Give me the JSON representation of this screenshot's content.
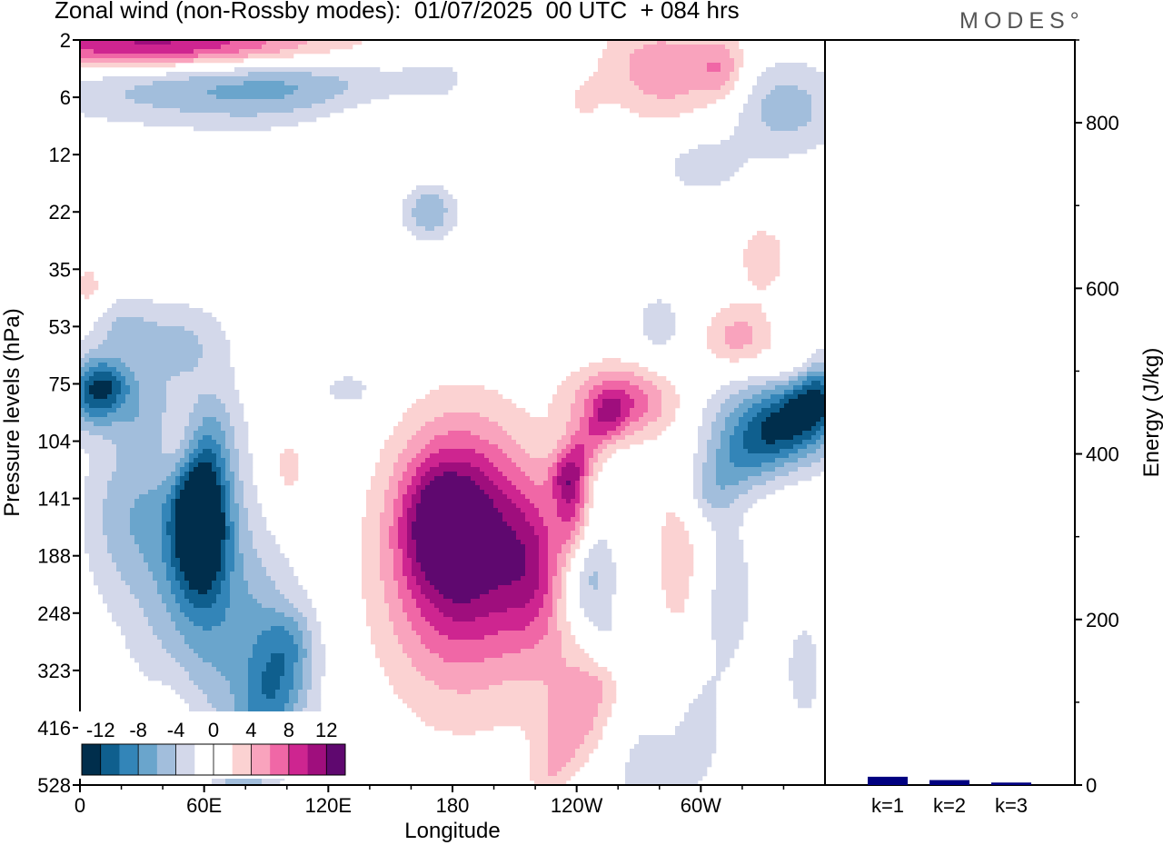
{
  "header": {
    "title": "Zonal wind (non-Rossby modes):  01/07/2025  00 UTC  + 084 hrs",
    "brand": "MODES°"
  },
  "colors": {
    "levels": [
      "#002e4c",
      "#0f5f8e",
      "#3385b8",
      "#6aa5cc",
      "#a2bedc",
      "#d3d8ea",
      "#ffffff",
      "#ffffff",
      "#fbd2d2",
      "#f9a3bd",
      "#f067a6",
      "#ce2590",
      "#9f0e7d",
      "#5f086f"
    ],
    "energy_bar": "#000080"
  },
  "chart_data": [
    {
      "type": "heatmap",
      "xlabel": "Longitude",
      "ylabel": "Pressure levels (hPa)",
      "xticks": [
        "0",
        "60E",
        "120E",
        "180",
        "120W",
        "60W"
      ],
      "xrange": [
        0,
        360
      ],
      "yticks": [
        "2",
        "6",
        "12",
        "22",
        "35",
        "53",
        "75",
        "104",
        "141",
        "188",
        "248",
        "323",
        "416",
        "528"
      ],
      "colorbar": {
        "labels": [
          "-12",
          "-8",
          "-4",
          "0",
          "4",
          "8",
          "12"
        ],
        "levels": [
          -14,
          -12,
          -10,
          -8,
          -6,
          -4,
          -2,
          0,
          2,
          4,
          6,
          8,
          10,
          12,
          14
        ]
      },
      "features": [
        {
          "lon": 58,
          "lev": 8.3,
          "amp": -15,
          "wx": 9,
          "wy": 0.9
        },
        {
          "lon": 52,
          "lev": 8.8,
          "amp": -6,
          "wx": 22,
          "wy": 2.0
        },
        {
          "lon": 80,
          "lev": 10.5,
          "amp": -4,
          "wx": 20,
          "wy": 1.3
        },
        {
          "lon": 98,
          "lev": 11.3,
          "amp": -3.5,
          "wx": 14,
          "wy": 1.0
        },
        {
          "lon": 20,
          "lev": 8.3,
          "amp": -3.5,
          "wx": 15,
          "wy": 1.0
        },
        {
          "lon": 8,
          "lev": 6.2,
          "amp": -5,
          "wx": 10,
          "wy": 0.4
        },
        {
          "lon": 45,
          "lev": 5.3,
          "amp": -3.5,
          "wx": 18,
          "wy": 0.5
        },
        {
          "lon": 185,
          "lev": 8.5,
          "amp": 11,
          "wx": 22,
          "wy": 1.3
        },
        {
          "lon": 172,
          "lev": 8.4,
          "amp": 5,
          "wx": 12,
          "wy": 0.7
        },
        {
          "lon": 185,
          "lev": 9.8,
          "amp": 5,
          "wx": 30,
          "wy": 1.6
        },
        {
          "lon": 220,
          "lev": 9.2,
          "amp": 6,
          "wx": 12,
          "wy": 1.0
        },
        {
          "lon": 238,
          "lev": 8.1,
          "amp": 7,
          "wx": 6,
          "wy": 0.7
        },
        {
          "lon": 262,
          "lev": 6.3,
          "amp": 8,
          "wx": 18,
          "wy": 0.45
        },
        {
          "lon": 242,
          "lev": 11.7,
          "amp": 4,
          "wx": 14,
          "wy": 1.0
        },
        {
          "lon": 50,
          "lev": 7.0,
          "amp": 6,
          "wx": 9,
          "wy": 0.6
        },
        {
          "lon": 45,
          "lev": 12.5,
          "amp": 3,
          "wx": 9,
          "wy": 0.9
        },
        {
          "lon": 245,
          "lev": 9.4,
          "amp": -6,
          "wx": 10,
          "wy": 0.7
        },
        {
          "lon": 335,
          "lev": 6.7,
          "amp": -8,
          "wx": 24,
          "wy": 0.6
        },
        {
          "lon": 355,
          "lev": 6.2,
          "amp": -5,
          "wx": 10,
          "wy": 0.5
        },
        {
          "lon": 5,
          "lev": 6.1,
          "amp": -5,
          "wx": 9,
          "wy": 0.5
        },
        {
          "lon": 318,
          "lev": 5.2,
          "amp": 5,
          "wx": 12,
          "wy": 0.4
        },
        {
          "lon": 313,
          "lev": 9.6,
          "amp": -3.5,
          "wx": 9,
          "wy": 1.0
        },
        {
          "lon": 40,
          "lev": 0.1,
          "amp": 12,
          "wx": 60,
          "wy": 0.3
        },
        {
          "lon": 120,
          "lev": 0.8,
          "amp": -8,
          "wx": 90,
          "wy": 0.5
        },
        {
          "lon": 150,
          "lev": 1.0,
          "amp": 5,
          "wx": 30,
          "wy": 0.6
        },
        {
          "lon": 280,
          "lev": 0.6,
          "amp": 7,
          "wx": 25,
          "wy": 0.6
        },
        {
          "lon": 340,
          "lev": 1.2,
          "amp": -5,
          "wx": 20,
          "wy": 0.6
        },
        {
          "lon": 200,
          "lev": 0.8,
          "amp": 3.5,
          "wx": 15,
          "wy": 0.3
        },
        {
          "lon": 240,
          "lev": 1.0,
          "amp": 3.5,
          "wx": 10,
          "wy": 0.4
        },
        {
          "lon": 310,
          "lev": 0.5,
          "amp": 4,
          "wx": 8,
          "wy": 0.4
        },
        {
          "lon": 170,
          "lev": 3.0,
          "amp": -3,
          "wx": 10,
          "wy": 0.4
        },
        {
          "lon": 280,
          "lev": 5.0,
          "amp": -3,
          "wx": 10,
          "wy": 0.5
        },
        {
          "lon": 330,
          "lev": 3.8,
          "amp": 3,
          "wx": 10,
          "wy": 0.5
        },
        {
          "lon": 300,
          "lev": 2.2,
          "amp": -3,
          "wx": 15,
          "wy": 0.4
        },
        {
          "lon": 270,
          "lev": 12.8,
          "amp": -3,
          "wx": 15,
          "wy": 1.0
        },
        {
          "lon": 300,
          "lev": 12.0,
          "amp": -2.5,
          "wx": 10,
          "wy": 1.0
        },
        {
          "lon": 350,
          "lev": 11.0,
          "amp": -2.5,
          "wx": 10,
          "wy": 1.0
        },
        {
          "lon": 290,
          "lev": 9.0,
          "amp": 3,
          "wx": 10,
          "wy": 1.4
        },
        {
          "lon": 20,
          "lev": 5.0,
          "amp": -3,
          "wx": 10,
          "wy": 0.4
        },
        {
          "lon": 345,
          "lev": 5.7,
          "amp": 3.5,
          "wx": 8,
          "wy": 0.3
        },
        {
          "lon": 15,
          "lev": 6.0,
          "amp": -4,
          "wx": 8,
          "wy": 0.3
        },
        {
          "lon": 130,
          "lev": 6.1,
          "amp": -3,
          "wx": 10,
          "wy": 0.25
        },
        {
          "lon": 100,
          "lev": 7.5,
          "amp": 3,
          "wx": 8,
          "wy": 0.6
        },
        {
          "lon": 4,
          "lev": 4.3,
          "amp": 3,
          "wx": 6,
          "wy": 0.3
        },
        {
          "lon": 168,
          "lev": 3.0,
          "amp": -3,
          "wx": 8,
          "wy": 0.3
        }
      ],
      "tilted_features": [
        {
          "lon0": 100,
          "lev0": 10.6,
          "lon1": 78,
          "lev1": 12.9,
          "amp": -4,
          "w": 9
        },
        {
          "lon0": 255,
          "lev0": 6.6,
          "lon1": 235,
          "lev1": 7.6,
          "amp": 5,
          "w": 6
        },
        {
          "lon0": 355,
          "lev0": 6.3,
          "lon1": 305,
          "lev1": 7.8,
          "amp": -5,
          "w": 9
        },
        {
          "lon0": 60,
          "lev0": 6.8,
          "lon1": 30,
          "lev1": 6.5,
          "amp": -3,
          "w": 10
        },
        {
          "lon0": 250,
          "lev0": 11.3,
          "lon1": 230,
          "lev1": 12.8,
          "amp": 4,
          "w": 8
        },
        {
          "lon0": 235,
          "lev0": 13.1,
          "lon1": 255,
          "lev1": 10.6,
          "amp": -2.5,
          "w": 8
        }
      ]
    },
    {
      "type": "bar",
      "categories": [
        "k=1",
        "k=2",
        "k=3"
      ],
      "values": [
        10,
        6,
        3
      ],
      "ylabel": "Energy (J/kg)",
      "ylim": [
        0,
        900
      ],
      "yticks": [
        0,
        200,
        400,
        600,
        800
      ]
    }
  ]
}
